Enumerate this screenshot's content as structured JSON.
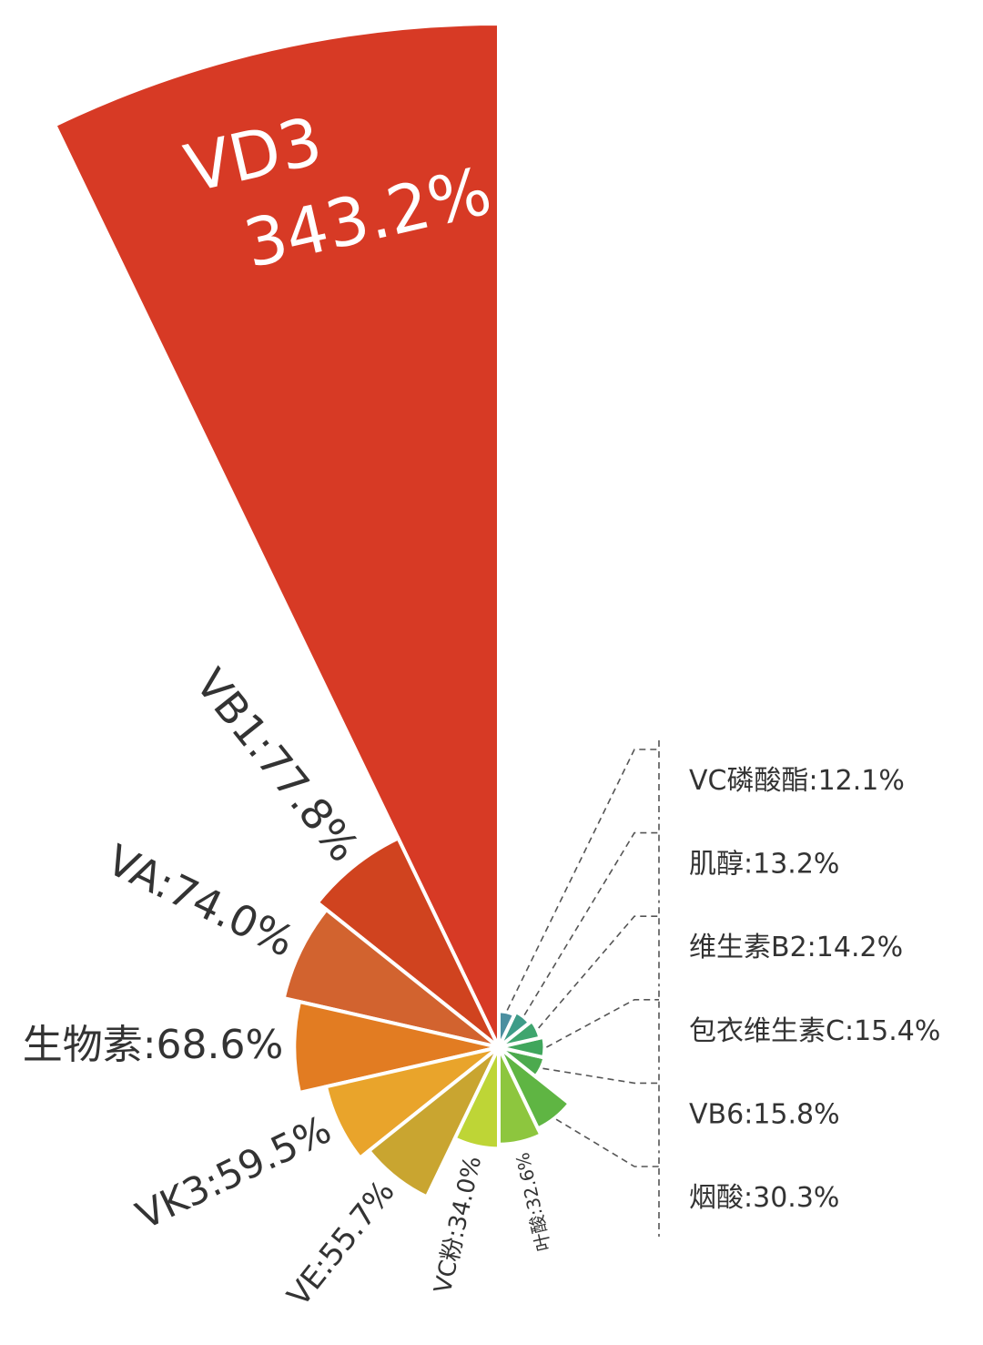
{
  "chart_data": {
    "type": "rose",
    "categories": [
      "VD3",
      "VB1",
      "VA",
      "生物素",
      "VK3",
      "VE",
      "VC粉",
      "叶酸",
      "烟酸",
      "VB6",
      "包衣维生素C",
      "维生素B2",
      "肌醇",
      "VC磷酸酯"
    ],
    "values": [
      343.2,
      77.8,
      74.0,
      68.6,
      59.5,
      55.7,
      34.0,
      32.6,
      30.3,
      15.8,
      15.4,
      14.2,
      13.2,
      12.1
    ],
    "value_labels": [
      "343.2%",
      "77.8%",
      "74.0%",
      "68.6%",
      "59.5%",
      "55.7%",
      "34.0%",
      "32.6%",
      "30.3%",
      "15.8%",
      "15.4%",
      "14.2%",
      "13.2%",
      "12.1%"
    ],
    "label_separator": ":",
    "colors": [
      "#d73a25",
      "#d0431f",
      "#d2632f",
      "#e27c22",
      "#e9a42b",
      "#c9a530",
      "#bed536",
      "#8dc63e",
      "#5fb543",
      "#4caa4e",
      "#40a65c",
      "#3fa56e",
      "#3e9c88",
      "#4b8fa0"
    ]
  }
}
